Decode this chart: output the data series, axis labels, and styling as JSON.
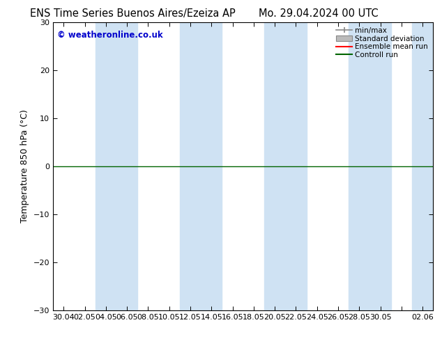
{
  "title_left": "ENS Time Series Buenos Aires/Ezeiza AP",
  "title_right": "Mo. 29.04.2024 00 UTC",
  "ylabel": "Temperature 850 hPa (°C)",
  "ylim": [
    -30,
    30
  ],
  "yticks": [
    -30,
    -20,
    -10,
    0,
    10,
    20,
    30
  ],
  "xtick_labels": [
    "30.04",
    "02.05",
    "04.05",
    "06.05",
    "08.05",
    "10.05",
    "12.05",
    "14.05",
    "16.05",
    "18.05",
    "20.05",
    "22.05",
    "24.05",
    "26.05",
    "28.05",
    "30.05",
    "",
    "02.06"
  ],
  "watermark": "© weatheronline.co.uk",
  "bg_color": "#ffffff",
  "band_color": "#cfe2f3",
  "zero_line_color": "#006400",
  "title_fontsize": 10.5,
  "tick_fontsize": 8,
  "watermark_color": "#0000cc",
  "band_indices": [
    2,
    3,
    6,
    7,
    10,
    11,
    14,
    15,
    17
  ],
  "legend_minmax_color": "#888888",
  "legend_std_color": "#bbbbbb",
  "legend_ens_color": "#ff0000",
  "legend_ctrl_color": "#006400"
}
